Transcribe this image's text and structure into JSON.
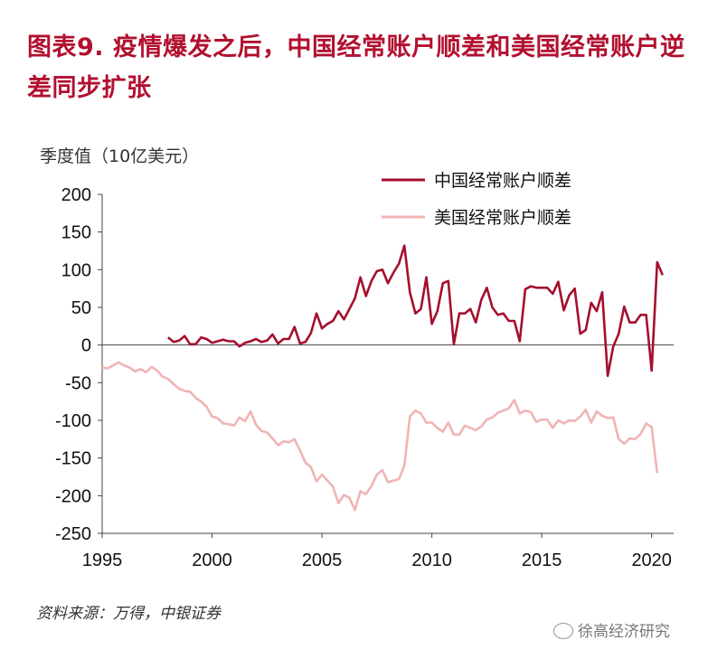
{
  "title": "图表9. 疫情爆发之后，中国经常账户顺差和美国经常账户逆差同步扩张",
  "unit_label": "季度值（10亿美元）",
  "source": "资料来源：万得，中银证券",
  "watermark": "徐高经济研究",
  "watermark_icon": "wechat-icon",
  "colors": {
    "china": "#a50f2d",
    "us": "#f0b4b4",
    "title": "#b2102f"
  },
  "chart_data": {
    "type": "line",
    "title": "",
    "xlabel": "",
    "ylabel": "季度值（10亿美元）",
    "xlim": [
      1995,
      2021
    ],
    "ylim": [
      -250,
      200
    ],
    "x_ticks": [
      1995,
      2000,
      2005,
      2010,
      2015,
      2020
    ],
    "y_ticks": [
      200,
      150,
      100,
      50,
      0,
      -50,
      -100,
      -150,
      -200,
      -250
    ],
    "grid": false,
    "legend_position": "top-right",
    "series": [
      {
        "name": "中国经常账户顺差",
        "color": "#a50f2d",
        "points": [
          [
            1998.0,
            10
          ],
          [
            1998.25,
            4
          ],
          [
            1998.5,
            6
          ],
          [
            1998.75,
            12
          ],
          [
            1999.0,
            1
          ],
          [
            1999.25,
            1
          ],
          [
            1999.5,
            10
          ],
          [
            1999.75,
            8
          ],
          [
            2000.0,
            3
          ],
          [
            2000.25,
            5
          ],
          [
            2000.5,
            7
          ],
          [
            2000.75,
            5
          ],
          [
            2001.0,
            5
          ],
          [
            2001.25,
            -2
          ],
          [
            2001.5,
            3
          ],
          [
            2001.75,
            5
          ],
          [
            2002.0,
            8
          ],
          [
            2002.25,
            4
          ],
          [
            2002.5,
            6
          ],
          [
            2002.75,
            14
          ],
          [
            2003.0,
            2
          ],
          [
            2003.25,
            8
          ],
          [
            2003.5,
            8
          ],
          [
            2003.75,
            24
          ],
          [
            2004.0,
            2
          ],
          [
            2004.25,
            4
          ],
          [
            2004.5,
            16
          ],
          [
            2004.75,
            42
          ],
          [
            2005.0,
            22
          ],
          [
            2005.25,
            28
          ],
          [
            2005.5,
            32
          ],
          [
            2005.75,
            45
          ],
          [
            2006.0,
            34
          ],
          [
            2006.25,
            48
          ],
          [
            2006.5,
            62
          ],
          [
            2006.75,
            90
          ],
          [
            2007.0,
            65
          ],
          [
            2007.25,
            85
          ],
          [
            2007.5,
            98
          ],
          [
            2007.75,
            100
          ],
          [
            2008.0,
            82
          ],
          [
            2008.25,
            96
          ],
          [
            2008.5,
            108
          ],
          [
            2008.75,
            132
          ],
          [
            2009.0,
            70
          ],
          [
            2009.25,
            42
          ],
          [
            2009.5,
            48
          ],
          [
            2009.75,
            90
          ],
          [
            2010.0,
            28
          ],
          [
            2010.25,
            45
          ],
          [
            2010.5,
            82
          ],
          [
            2010.75,
            85
          ],
          [
            2011.0,
            1
          ],
          [
            2011.25,
            42
          ],
          [
            2011.5,
            42
          ],
          [
            2011.75,
            48
          ],
          [
            2012.0,
            30
          ],
          [
            2012.25,
            60
          ],
          [
            2012.5,
            76
          ],
          [
            2012.75,
            50
          ],
          [
            2013.0,
            40
          ],
          [
            2013.25,
            42
          ],
          [
            2013.5,
            32
          ],
          [
            2013.75,
            32
          ],
          [
            2014.0,
            5
          ],
          [
            2014.25,
            74
          ],
          [
            2014.5,
            78
          ],
          [
            2014.75,
            76
          ],
          [
            2015.0,
            76
          ],
          [
            2015.25,
            76
          ],
          [
            2015.5,
            68
          ],
          [
            2015.75,
            84
          ],
          [
            2016.0,
            46
          ],
          [
            2016.25,
            66
          ],
          [
            2016.5,
            75
          ],
          [
            2016.75,
            15
          ],
          [
            2017.0,
            20
          ],
          [
            2017.25,
            56
          ],
          [
            2017.5,
            45
          ],
          [
            2017.75,
            70
          ],
          [
            2018.0,
            -41
          ],
          [
            2018.25,
            -2
          ],
          [
            2018.5,
            15
          ],
          [
            2018.75,
            51
          ],
          [
            2019.0,
            30
          ],
          [
            2019.25,
            30
          ],
          [
            2019.5,
            40
          ],
          [
            2019.75,
            40
          ],
          [
            2020.0,
            -34
          ],
          [
            2020.25,
            110
          ],
          [
            2020.5,
            93
          ]
        ]
      },
      {
        "name": "美国经常账户顺差",
        "color": "#f0b4b4",
        "points": [
          [
            1995.0,
            -30
          ],
          [
            1995.25,
            -31
          ],
          [
            1995.5,
            -27
          ],
          [
            1995.75,
            -23
          ],
          [
            1996.0,
            -27
          ],
          [
            1996.25,
            -30
          ],
          [
            1996.5,
            -35
          ],
          [
            1996.75,
            -32
          ],
          [
            1997.0,
            -36
          ],
          [
            1997.25,
            -29
          ],
          [
            1997.5,
            -34
          ],
          [
            1997.75,
            -42
          ],
          [
            1998.0,
            -45
          ],
          [
            1998.25,
            -52
          ],
          [
            1998.5,
            -58
          ],
          [
            1998.75,
            -61
          ],
          [
            1999.0,
            -62
          ],
          [
            1999.25,
            -70
          ],
          [
            1999.5,
            -75
          ],
          [
            1999.75,
            -82
          ],
          [
            2000.0,
            -95
          ],
          [
            2000.25,
            -97
          ],
          [
            2000.5,
            -104
          ],
          [
            2000.75,
            -105
          ],
          [
            2001.0,
            -107
          ],
          [
            2001.25,
            -96
          ],
          [
            2001.5,
            -101
          ],
          [
            2001.75,
            -88
          ],
          [
            2002.0,
            -106
          ],
          [
            2002.25,
            -114
          ],
          [
            2002.5,
            -116
          ],
          [
            2002.75,
            -124
          ],
          [
            2003.0,
            -133
          ],
          [
            2003.25,
            -128
          ],
          [
            2003.5,
            -129
          ],
          [
            2003.75,
            -125
          ],
          [
            2004.0,
            -140
          ],
          [
            2004.25,
            -156
          ],
          [
            2004.5,
            -162
          ],
          [
            2004.75,
            -181
          ],
          [
            2005.0,
            -172
          ],
          [
            2005.25,
            -180
          ],
          [
            2005.5,
            -188
          ],
          [
            2005.75,
            -210
          ],
          [
            2006.0,
            -199
          ],
          [
            2006.25,
            -203
          ],
          [
            2006.5,
            -219
          ],
          [
            2006.75,
            -194
          ],
          [
            2007.0,
            -198
          ],
          [
            2007.25,
            -187
          ],
          [
            2007.5,
            -172
          ],
          [
            2007.75,
            -166
          ],
          [
            2008.0,
            -182
          ],
          [
            2008.25,
            -180
          ],
          [
            2008.5,
            -178
          ],
          [
            2008.75,
            -160
          ],
          [
            2009.0,
            -95
          ],
          [
            2009.25,
            -87
          ],
          [
            2009.5,
            -91
          ],
          [
            2009.75,
            -103
          ],
          [
            2010.0,
            -103
          ],
          [
            2010.25,
            -110
          ],
          [
            2010.5,
            -115
          ],
          [
            2010.75,
            -103
          ],
          [
            2011.0,
            -119
          ],
          [
            2011.25,
            -119
          ],
          [
            2011.5,
            -107
          ],
          [
            2011.75,
            -110
          ],
          [
            2012.0,
            -113
          ],
          [
            2012.25,
            -108
          ],
          [
            2012.5,
            -99
          ],
          [
            2012.75,
            -96
          ],
          [
            2013.0,
            -90
          ],
          [
            2013.25,
            -87
          ],
          [
            2013.5,
            -84
          ],
          [
            2013.75,
            -73
          ],
          [
            2014.0,
            -91
          ],
          [
            2014.25,
            -87
          ],
          [
            2014.5,
            -89
          ],
          [
            2014.75,
            -102
          ],
          [
            2015.0,
            -99
          ],
          [
            2015.25,
            -99
          ],
          [
            2015.5,
            -110
          ],
          [
            2015.75,
            -100
          ],
          [
            2016.0,
            -104
          ],
          [
            2016.25,
            -100
          ],
          [
            2016.5,
            -101
          ],
          [
            2016.75,
            -95
          ],
          [
            2017.0,
            -86
          ],
          [
            2017.25,
            -103
          ],
          [
            2017.5,
            -88
          ],
          [
            2017.75,
            -94
          ],
          [
            2018.0,
            -97
          ],
          [
            2018.25,
            -96
          ],
          [
            2018.5,
            -125
          ],
          [
            2018.75,
            -131
          ],
          [
            2019.0,
            -124
          ],
          [
            2019.25,
            -125
          ],
          [
            2019.5,
            -118
          ],
          [
            2019.75,
            -104
          ],
          [
            2020.0,
            -109
          ],
          [
            2020.25,
            -170
          ]
        ]
      }
    ]
  }
}
